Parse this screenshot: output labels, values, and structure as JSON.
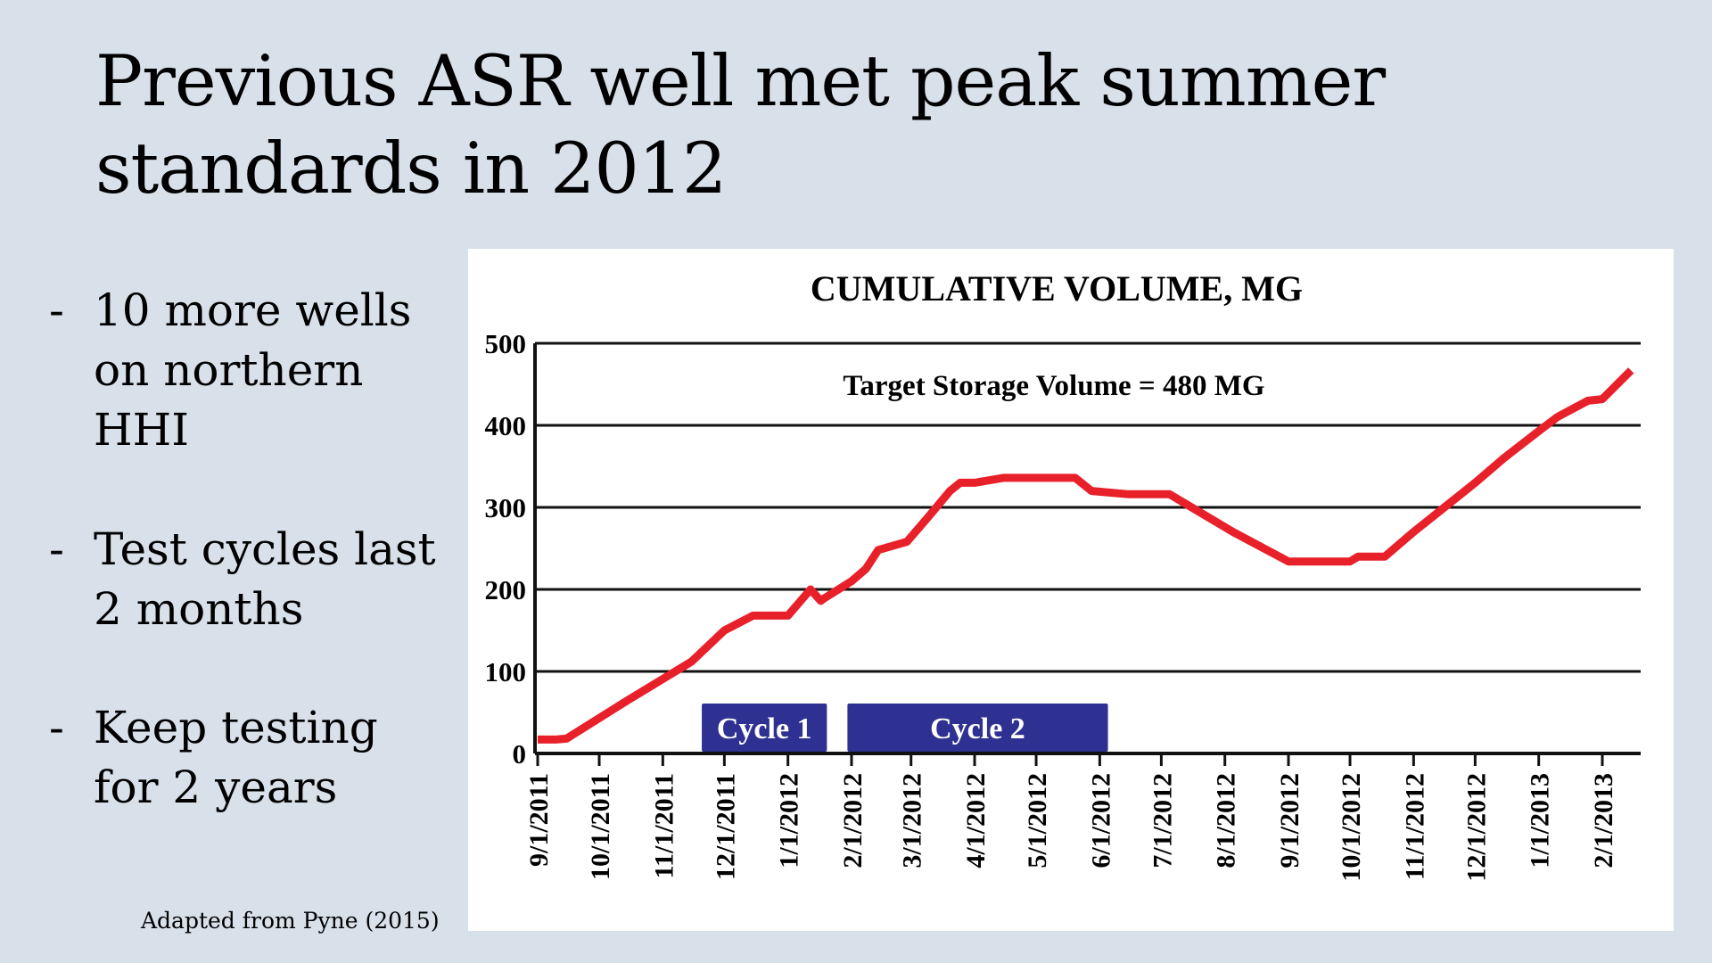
{
  "slide": {
    "title_line1": "Previous ASR well met peak summer",
    "title_line2": "standards in 2012",
    "bullets": [
      {
        "dash": "-",
        "line1": "10 more wells",
        "line2": "on northern",
        "line3": "HHI"
      },
      {
        "dash": "-",
        "line1": "Test cycles last",
        "line2": "2 months"
      },
      {
        "dash": "-",
        "line1": "Keep testing",
        "line2": "for 2 years"
      }
    ],
    "caption": "Adapted from Pyne (2015)"
  },
  "chart_data": {
    "type": "line",
    "title": "CUMULATIVE VOLUME, MG",
    "annotation": "Target Storage Volume = 480 MG",
    "xlabel": "",
    "ylabel": "",
    "ylim": [
      0,
      500
    ],
    "yticks": [
      0,
      100,
      200,
      300,
      400,
      500
    ],
    "grid": true,
    "x_tick_labels": [
      "9/1/2011",
      "10/1/2011",
      "11/1/2011",
      "12/1/2011",
      "1/1/2012",
      "2/1/2012",
      "3/1/2012",
      "4/1/2012",
      "5/1/2012",
      "6/1/2012",
      "7/1/2012",
      "8/1/2012",
      "9/1/2012",
      "10/1/2012",
      "11/1/2012",
      "12/1/2012",
      "1/1/2013",
      "2/1/2013"
    ],
    "line_color": "#e8202a",
    "series": [
      {
        "x": [
          "9/1/2011",
          "9/10/2011",
          "9/15/2011",
          "10/15/2011",
          "11/15/2011",
          "12/1/2011",
          "12/15/2011",
          "12/20/2011",
          "1/1/2012",
          "1/12/2012",
          "1/17/2012",
          "1/18/2012",
          "2/1/2012",
          "2/8/2012",
          "2/14/2012",
          "2/28/2012",
          "3/10/2012",
          "3/20/2012",
          "3/25/2012",
          "4/1/2012",
          "4/15/2012",
          "5/1/2012",
          "5/10/2012",
          "5/20/2012",
          "5/28/2012",
          "6/15/2012",
          "7/5/2012",
          "8/5/2012",
          "9/1/2012",
          "10/1/2012",
          "10/5/2012",
          "10/18/2012",
          "11/1/2012",
          "11/15/2012",
          "12/1/2012",
          "12/15/2012",
          "1/1/2013",
          "1/10/2013",
          "1/16/2013",
          "1/25/2013",
          "2/1/2013",
          "2/15/2013"
        ],
        "values": [
          17,
          17,
          18,
          65,
          112,
          150,
          168,
          168,
          168,
          200,
          186,
          188,
          210,
          225,
          248,
          258,
          290,
          320,
          330,
          330,
          336,
          336,
          336,
          336,
          320,
          316,
          316,
          270,
          234,
          234,
          240,
          240,
          270,
          298,
          330,
          360,
          393,
          410,
          418,
          430,
          432,
          467
        ]
      }
    ],
    "cycles": [
      {
        "label": "Cycle 1",
        "start": "11/20/2011",
        "end": "1/20/2012",
        "color": "#2e3192"
      },
      {
        "label": "Cycle 2",
        "start": "1/30/2012",
        "end": "6/5/2012",
        "color": "#2e3192"
      }
    ]
  }
}
